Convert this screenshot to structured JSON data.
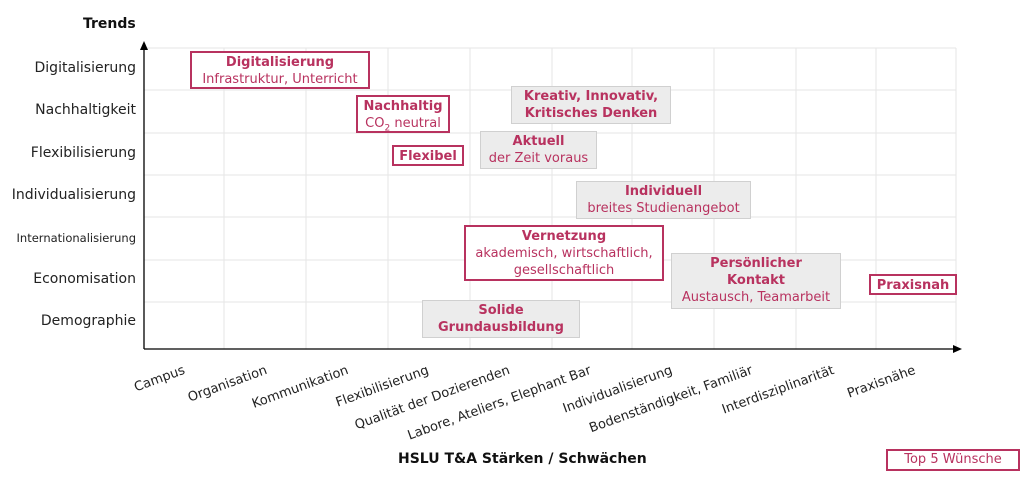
{
  "y_axis_title": "Trends",
  "x_axis_title": "HSLU T&A Stärken / Schwächen",
  "y_labels": [
    "Digitalisierung",
    "Nachhaltigkeit",
    "Flexibilisierung",
    "Individualisierung",
    "Internationalisierung",
    "Economisation",
    "Demographie"
  ],
  "x_labels": [
    "Campus",
    "Organisation",
    "Kommunikation",
    "Flexibilisierung",
    "Qualität der Dozierenden",
    "Labore, Ateliers, Elephant Bar",
    "Individualisierung",
    "Bodenständigkeit, Familiär",
    "Interdisziplinarität",
    "Praxisnähe"
  ],
  "boxes": {
    "digitalisierung": {
      "title": "Digitalisierung",
      "sub": "Infrastruktur, Unterricht",
      "top5": true
    },
    "nachhaltig": {
      "title": "Nachhaltig",
      "sub_pre": "CO",
      "sub_sub": "2",
      "sub_post": " neutral",
      "top5": true
    },
    "kreativ": {
      "title_line1": "Kreativ, Innovativ,",
      "title_line2": "Kritisches Denken",
      "top5": false
    },
    "flexibel": {
      "title": "Flexibel",
      "top5": true
    },
    "aktuell": {
      "title": "Aktuell",
      "sub": "der Zeit voraus",
      "top5": false
    },
    "individuell": {
      "title": "Individuell",
      "sub": "breites Studienangebot",
      "top5": false
    },
    "vernetzung": {
      "title": "Vernetzung",
      "sub_line1": "akademisch, wirtschaftlich,",
      "sub_line2": "gesellschaftlich",
      "top5": true
    },
    "persoenlich": {
      "title_line1": "Persönlicher",
      "title_line2": "Kontakt",
      "sub": "Austausch, Teamarbeit",
      "top5": false
    },
    "praxisnah": {
      "title": "Praxisnah",
      "top5": true
    },
    "solide": {
      "title_line1": "Solide",
      "title_line2": "Grundausbildung",
      "top5": false
    }
  },
  "legend": {
    "label": "Top 5 Wünsche"
  },
  "colors": {
    "accent": "#b8325f",
    "box_fill": "#ececec",
    "grid": "#e6e6e6",
    "axis": "#000000"
  }
}
